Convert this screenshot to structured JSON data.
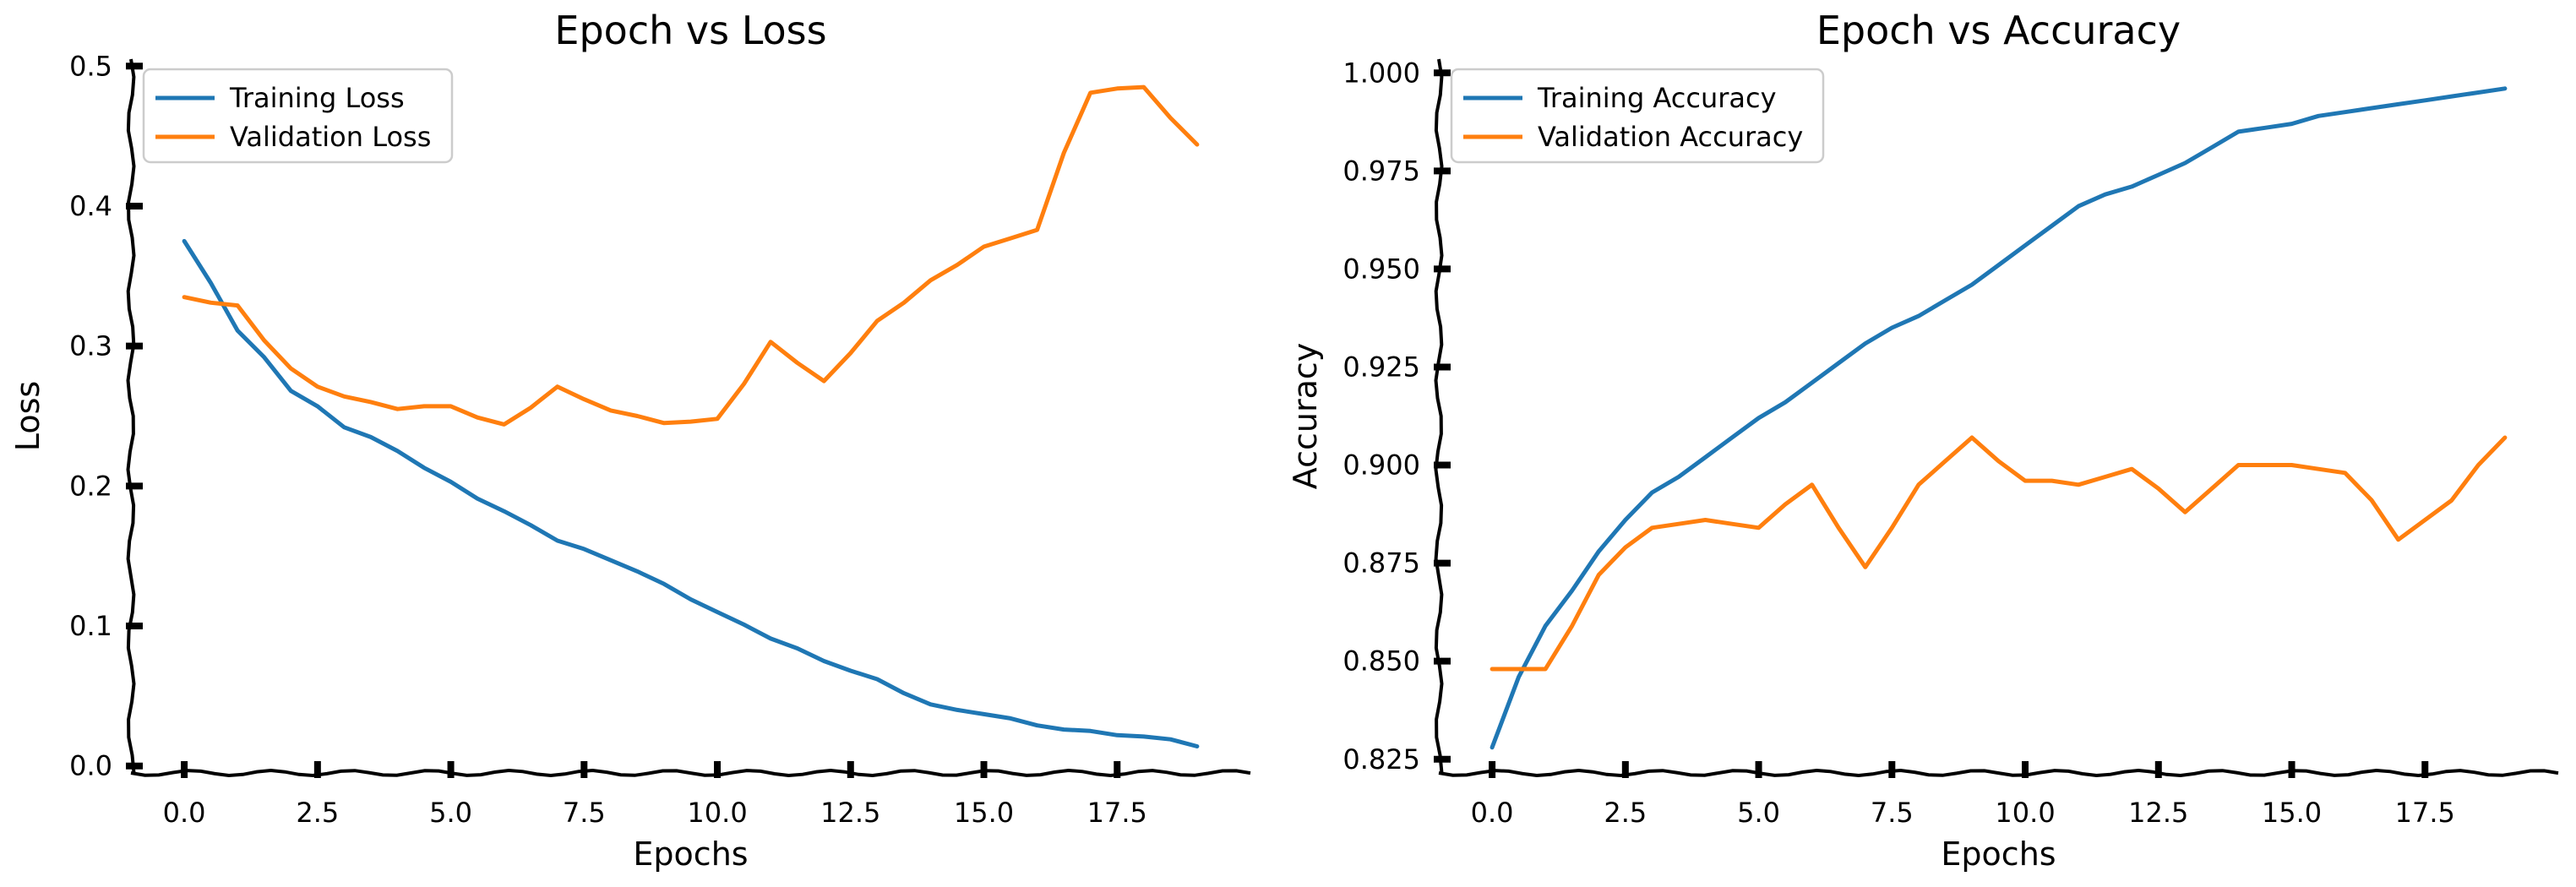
{
  "chart_data": [
    {
      "type": "line",
      "title": "Epoch vs Loss",
      "xlabel": "Epochs",
      "ylabel": "Loss",
      "xlim": [
        -1,
        20
      ],
      "ylim": [
        -0.005,
        0.505
      ],
      "xticks": [
        0,
        2.5,
        5,
        7.5,
        10,
        12.5,
        15,
        17.5
      ],
      "xtick_labels": [
        "0.0",
        "2.5",
        "5.0",
        "7.5",
        "10.0",
        "12.5",
        "15.0",
        "17.5"
      ],
      "yticks": [
        0.0,
        0.1,
        0.2,
        0.3,
        0.4,
        0.5
      ],
      "ytick_labels": [
        "0.0",
        "0.1",
        "0.2",
        "0.3",
        "0.4",
        "0.5"
      ],
      "legend_position": "top-left",
      "grid": false,
      "series": [
        {
          "name": "Training Loss",
          "color": "#1f77b4",
          "x": [
            0,
            0.5,
            1,
            1.5,
            2,
            2.5,
            3,
            3.5,
            4,
            4.5,
            5,
            5.5,
            6,
            6.5,
            7,
            7.5,
            8,
            8.5,
            9,
            9.5,
            10,
            10.5,
            11,
            11.5,
            12,
            12.5,
            13,
            13.5,
            14,
            14.5,
            15,
            15.5,
            16,
            16.5,
            17,
            17.5,
            18,
            18.5,
            19
          ],
          "y": [
            0.375,
            0.345,
            0.311,
            0.292,
            0.268,
            0.257,
            0.242,
            0.235,
            0.225,
            0.213,
            0.203,
            0.191,
            0.182,
            0.172,
            0.161,
            0.155,
            0.147,
            0.139,
            0.13,
            0.119,
            0.11,
            0.101,
            0.091,
            0.084,
            0.075,
            0.068,
            0.062,
            0.052,
            0.044,
            0.04,
            0.037,
            0.034,
            0.029,
            0.026,
            0.025,
            0.022,
            0.021,
            0.019,
            0.014
          ]
        },
        {
          "name": "Validation Loss",
          "color": "#ff7f0e",
          "x": [
            0,
            0.5,
            1,
            1.5,
            2,
            2.5,
            3,
            3.5,
            4,
            4.5,
            5,
            5.5,
            6,
            6.5,
            7,
            7.5,
            8,
            8.5,
            9,
            9.5,
            10,
            10.5,
            11,
            11.5,
            12,
            12.5,
            13,
            13.5,
            14,
            14.5,
            15,
            15.5,
            16,
            16.5,
            17,
            17.5,
            18,
            18.5,
            19
          ],
          "y": [
            0.335,
            0.331,
            0.329,
            0.304,
            0.284,
            0.271,
            0.264,
            0.26,
            0.255,
            0.257,
            0.257,
            0.249,
            0.244,
            0.256,
            0.271,
            0.262,
            0.254,
            0.25,
            0.245,
            0.246,
            0.248,
            0.273,
            0.303,
            0.288,
            0.275,
            0.295,
            0.318,
            0.331,
            0.347,
            0.358,
            0.371,
            0.377,
            0.383,
            0.438,
            0.481,
            0.484,
            0.485,
            0.463,
            0.444
          ]
        }
      ]
    },
    {
      "type": "line",
      "title": "Epoch vs Accuracy",
      "xlabel": "Epochs",
      "ylabel": "Accuracy",
      "xlim": [
        -1,
        20
      ],
      "ylim": [
        0.8215,
        1.0035
      ],
      "xticks": [
        0,
        2.5,
        5,
        7.5,
        10,
        12.5,
        15,
        17.5
      ],
      "xtick_labels": [
        "0.0",
        "2.5",
        "5.0",
        "7.5",
        "10.0",
        "12.5",
        "15.0",
        "17.5"
      ],
      "yticks": [
        0.825,
        0.85,
        0.875,
        0.9,
        0.925,
        0.95,
        0.975,
        1.0
      ],
      "ytick_labels": [
        "0.825",
        "0.850",
        "0.875",
        "0.900",
        "0.925",
        "0.950",
        "0.975",
        "1.000"
      ],
      "legend_position": "top-left",
      "grid": false,
      "series": [
        {
          "name": "Training Accuracy",
          "color": "#1f77b4",
          "x": [
            0,
            0.5,
            1,
            1.5,
            2,
            2.5,
            3,
            3.5,
            4,
            4.5,
            5,
            5.5,
            6,
            6.5,
            7,
            7.5,
            8,
            8.5,
            9,
            9.5,
            10,
            10.5,
            11,
            11.5,
            12,
            12.5,
            13,
            13.5,
            14,
            14.5,
            15,
            15.5,
            16,
            16.5,
            17,
            17.5,
            18,
            18.5,
            19
          ],
          "y": [
            0.828,
            0.846,
            0.859,
            0.868,
            0.878,
            0.886,
            0.893,
            0.897,
            0.902,
            0.907,
            0.912,
            0.916,
            0.921,
            0.926,
            0.931,
            0.935,
            0.938,
            0.942,
            0.946,
            0.951,
            0.956,
            0.961,
            0.966,
            0.969,
            0.971,
            0.974,
            0.977,
            0.981,
            0.985,
            0.986,
            0.987,
            0.989,
            0.99,
            0.991,
            0.992,
            0.993,
            0.994,
            0.995,
            0.996
          ]
        },
        {
          "name": "Validation Accuracy",
          "color": "#ff7f0e",
          "x": [
            0,
            0.5,
            1,
            1.5,
            2,
            2.5,
            3,
            3.5,
            4,
            4.5,
            5,
            5.5,
            6,
            6.5,
            7,
            7.5,
            8,
            8.5,
            9,
            9.5,
            10,
            10.5,
            11,
            11.5,
            12,
            12.5,
            13,
            13.5,
            14,
            14.5,
            15,
            15.5,
            16,
            16.5,
            17,
            17.5,
            18,
            18.5,
            19
          ],
          "y": [
            0.848,
            0.848,
            0.848,
            0.859,
            0.872,
            0.879,
            0.884,
            0.885,
            0.886,
            0.885,
            0.884,
            0.89,
            0.895,
            0.884,
            0.874,
            0.884,
            0.895,
            0.901,
            0.907,
            0.901,
            0.896,
            0.896,
            0.895,
            0.897,
            0.899,
            0.894,
            0.888,
            0.894,
            0.9,
            0.9,
            0.9,
            0.899,
            0.898,
            0.891,
            0.881,
            0.886,
            0.891,
            0.9,
            0.907
          ]
        }
      ]
    }
  ]
}
